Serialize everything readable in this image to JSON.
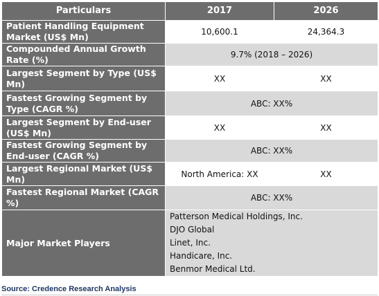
{
  "header": {
    "col1": "Particulars",
    "col2": "2017",
    "col3": "2026"
  },
  "rows": [
    {
      "label": "Patient Handling Equipment Market (US$ Mn)",
      "v2017": "10,600.1",
      "v2026": "24,364.3"
    },
    {
      "label": "Compounded Annual Growth Rate (%)",
      "merged": "9.7% (2018 – 2026)"
    },
    {
      "label": "Largest Segment by Type (US$ Mn)",
      "v2017": "XX",
      "v2026": "XX"
    },
    {
      "label": "Fastest Growing Segment by Type (CAGR %)",
      "merged": "ABC: XX%"
    },
    {
      "label": "Largest Segment by End-user (US$ Mn)",
      "v2017": "XX",
      "v2026": "XX"
    },
    {
      "label": "Fastest Growing Segment by End-user (CAGR %)",
      "merged": "ABC: XX%"
    },
    {
      "label": "Largest Regional Market (US$ Mn)",
      "v2017": "North America: XX",
      "v2026": "XX"
    },
    {
      "label": "Fastest Regional Market (CAGR %)",
      "merged": "ABC: XX%"
    }
  ],
  "players": {
    "label": "Major Market Players",
    "list": [
      "Patterson Medical Holdings, Inc.",
      "DJO Global",
      "Linet, Inc.",
      "Handicare, Inc.",
      "Benmor Medical Ltd."
    ]
  },
  "source": "Source: Credence Research Analysis"
}
